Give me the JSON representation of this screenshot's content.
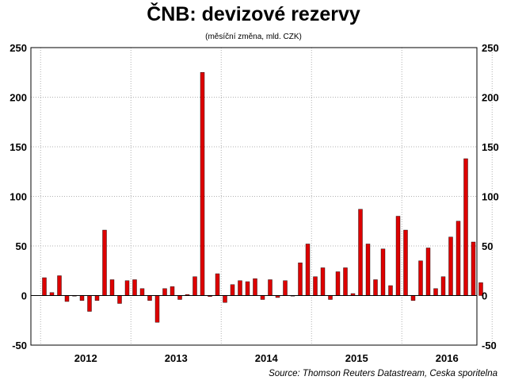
{
  "title": "ČNB: devizové rezervy",
  "subtitle": "(měsíční změna, mld. CZK)",
  "source": "Source: Thomson Reuters Datastream, Ceska sporitelna",
  "colors": {
    "bar_fill": "#dd0000",
    "bar_stroke": "#000000",
    "grid": "#b0b0b0"
  },
  "chart_data": {
    "type": "bar",
    "title": "ČNB: devizové rezervy",
    "subtitle": "(měsíční změna, mld. CZK)",
    "xlabel": "",
    "ylabel": "",
    "ylim": [
      -50,
      250
    ],
    "yticks": [
      -50,
      0,
      50,
      100,
      150,
      200,
      250
    ],
    "y_axes": [
      "left",
      "right"
    ],
    "grid": "dotted",
    "year_labels": [
      "2012",
      "2013",
      "2014",
      "2015",
      "2016"
    ],
    "values": [
      18,
      3,
      20,
      -6,
      0,
      -5,
      -16,
      -5,
      66,
      16,
      -8,
      15,
      16,
      7,
      -5,
      -27,
      7,
      9,
      -4,
      1,
      19,
      225,
      -1,
      22,
      -7,
      11,
      15,
      14,
      17,
      -4,
      16,
      -2,
      15,
      0,
      33,
      52,
      19,
      28,
      -4,
      24,
      28,
      2,
      87,
      52,
      16,
      47,
      10,
      80,
      66,
      -5,
      35,
      48,
      7,
      19,
      59,
      75,
      138,
      54,
      13
    ]
  }
}
